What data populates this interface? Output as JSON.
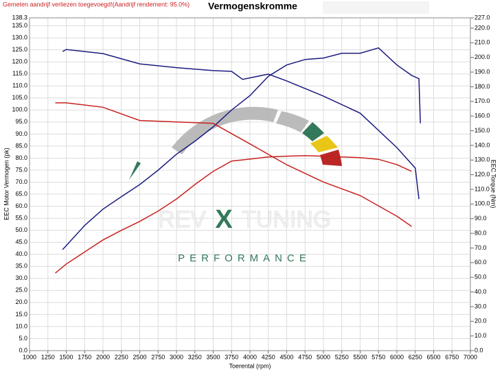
{
  "chart_data": {
    "type": "line",
    "title": "Vermogenskromme",
    "annotation": "Gemeten aandrijf verliezen toegevoegd!(Aandrijf rendement: 95.0%)",
    "x_label": "Toerental (rpm)",
    "y_label": "EEC Motor Vermogen (pk)",
    "y2_label": "EEC Torque (Nm)",
    "grid": true,
    "xlim": [
      1000,
      7000
    ],
    "xticks": [
      1000,
      1250,
      1500,
      1750,
      2000,
      2250,
      2500,
      2750,
      3000,
      3250,
      3500,
      3750,
      4000,
      4250,
      4500,
      4750,
      5000,
      5250,
      5500,
      5750,
      6000,
      6250,
      6500,
      6750,
      7000
    ],
    "ylim": [
      0,
      138.3
    ],
    "yticks": [
      {
        "value": 0,
        "label": "0.0"
      },
      {
        "value": 5,
        "label": "5.0"
      },
      {
        "value": 10,
        "label": "10.0"
      },
      {
        "value": 15,
        "label": "15.0"
      },
      {
        "value": 20,
        "label": "20.0"
      },
      {
        "value": 25,
        "label": "25.0"
      },
      {
        "value": 30,
        "label": "30.0"
      },
      {
        "value": 35,
        "label": "35.0"
      },
      {
        "value": 40,
        "label": "40.0"
      },
      {
        "value": 45,
        "label": "45.0"
      },
      {
        "value": 50,
        "label": "50.0"
      },
      {
        "value": 55,
        "label": "55.0"
      },
      {
        "value": 60,
        "label": "60.0"
      },
      {
        "value": 65,
        "label": "65.0"
      },
      {
        "value": 70,
        "label": "70.0"
      },
      {
        "value": 75,
        "label": "75.0"
      },
      {
        "value": 80,
        "label": "80.0"
      },
      {
        "value": 85,
        "label": "85.0"
      },
      {
        "value": 90,
        "label": "90.0"
      },
      {
        "value": 95,
        "label": "95.0"
      },
      {
        "value": 100,
        "label": "100.0"
      },
      {
        "value": 105,
        "label": "105.0"
      },
      {
        "value": 110,
        "label": "110.0"
      },
      {
        "value": 115,
        "label": "115.0"
      },
      {
        "value": 120,
        "label": "120.0"
      },
      {
        "value": 125,
        "label": "125.0"
      },
      {
        "value": 130,
        "label": "130.0"
      },
      {
        "value": 135,
        "label": "135.0"
      },
      138.3
    ],
    "y2lim": [
      0,
      227
    ],
    "y2ticks": [
      {
        "value": 0,
        "label": "0.0"
      },
      {
        "value": 10,
        "label": "10.0"
      },
      {
        "value": 20,
        "label": "20.0"
      },
      {
        "value": 30,
        "label": "30.0"
      },
      {
        "value": 40,
        "label": "40.0"
      },
      {
        "value": 50,
        "label": "50.0"
      },
      {
        "value": 60,
        "label": "60.0"
      },
      {
        "value": 70,
        "label": "70.0"
      },
      {
        "value": 80,
        "label": "80.0"
      },
      {
        "value": 90,
        "label": "90.0"
      },
      {
        "value": 100,
        "label": "100.0"
      },
      {
        "value": 110,
        "label": "110.0"
      },
      {
        "value": 120,
        "label": "120.0"
      },
      {
        "value": 130,
        "label": "130.0"
      },
      {
        "value": 140,
        "label": "140.0"
      },
      {
        "value": 150,
        "label": "150.0"
      },
      {
        "value": 160,
        "label": "160.0"
      },
      {
        "value": 170,
        "label": "170.0"
      },
      {
        "value": 180,
        "label": "180.0"
      },
      {
        "value": 190,
        "label": "190.0"
      },
      {
        "value": 200,
        "label": "200.0"
      },
      {
        "value": 210,
        "label": "210.0"
      },
      {
        "value": 220,
        "label": "220.0"
      },
      {
        "value": 227,
        "label": "227.0"
      }
    ],
    "series": [
      {
        "color": "#1a1a80",
        "x": [
          1450,
          1750,
          2000,
          2250,
          2500,
          2750,
          3000,
          3250,
          3500,
          3750,
          4000,
          4250,
          4500,
          4750,
          5000,
          5250,
          5500,
          5750,
          6000,
          6200,
          6300,
          6320
        ],
        "values": [
          42,
          52,
          58.8,
          64,
          69,
          75,
          81.6,
          87,
          93,
          100,
          106,
          114,
          118.7,
          121,
          121.6,
          123.6,
          123.6,
          125.8,
          118.7,
          114.4,
          113,
          94.5
        ]
      },
      {
        "color": "#c8201e",
        "x": [
          1350,
          1500,
          1750,
          2000,
          2250,
          2500,
          2750,
          3000,
          3250,
          3500,
          3750,
          4000,
          4250,
          4500,
          4750,
          5000,
          5250,
          5500,
          5750,
          6000,
          6200
        ],
        "values": [
          32.2,
          36,
          41,
          46,
          50,
          53.7,
          58,
          63,
          69,
          74.5,
          78.8,
          79.6,
          80.5,
          80.8,
          81,
          80.8,
          80.5,
          80.2,
          79.5,
          77.3,
          74.5
        ]
      },
      {
        "color": "#1a1a80",
        "axis": "y2",
        "x": [
          1450,
          1500,
          2000,
          2500,
          3000,
          3500,
          3750,
          3900,
          4250,
          4500,
          5000,
          5500,
          6000,
          6250,
          6300
        ],
        "values": [
          204,
          205.4,
          202.6,
          195.6,
          193,
          191,
          190.5,
          185,
          188.6,
          184,
          173.6,
          162,
          138.5,
          124.5,
          103.4
        ]
      },
      {
        "color": "#c8201e",
        "axis": "y2",
        "x": [
          1350,
          1500,
          2000,
          2500,
          3000,
          3500,
          3750,
          4000,
          4500,
          5000,
          5500,
          6000,
          6200
        ],
        "values": [
          169,
          169,
          166,
          157,
          156,
          155,
          148,
          141,
          126.8,
          115,
          105.8,
          91.7,
          84.7
        ]
      }
    ]
  },
  "logo": {
    "left": "REV",
    "mark": "X",
    "right": "TUNING",
    "tagline": "PERFORMANCE"
  }
}
